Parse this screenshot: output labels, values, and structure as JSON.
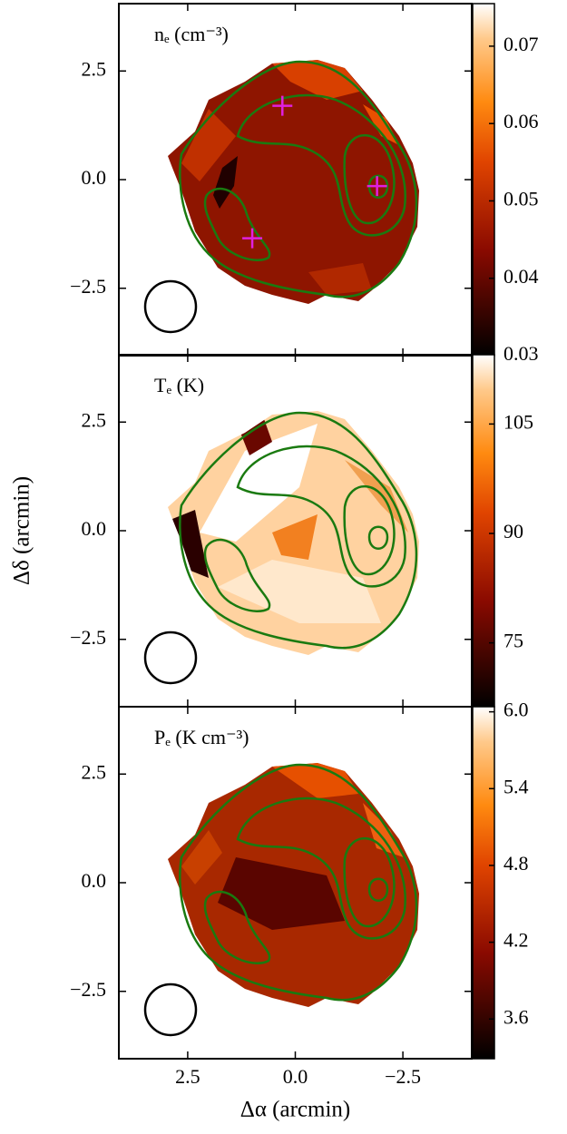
{
  "chart_data": [
    {
      "type": "map",
      "title": "nₑ (cm⁻³)",
      "xlim": [
        4.1,
        -4.1
      ],
      "ylim": [
        -4.05,
        4.05
      ],
      "xticks": [
        2.5,
        {
          "value": 0,
          "label": "0.0"
        },
        {
          "value": -2.5,
          "label": "−2.5"
        }
      ],
      "yticks": [
        2.5,
        {
          "value": 0,
          "label": "0.0"
        },
        {
          "value": -2.5,
          "label": "−2.5"
        }
      ],
      "clim": [
        0.03,
        0.0755
      ],
      "cticks": [
        0.03,
        0.04,
        0.05,
        0.06,
        0.07
      ],
      "markers": {
        "color": "#e020e0",
        "x": [
          0.3,
          1.0,
          -1.9
        ],
        "y": [
          1.7,
          -1.35,
          -0.15
        ]
      }
    },
    {
      "type": "map",
      "title": "Tₑ (K)",
      "ylabel": "Δδ (arcmin)",
      "xlim": [
        4.1,
        -4.1
      ],
      "ylim": [
        -4.05,
        4.05
      ],
      "xticks": [
        2.5,
        {
          "value": 0,
          "label": "0.0"
        },
        {
          "value": -2.5,
          "label": "−2.5"
        }
      ],
      "yticks": [
        2.5,
        {
          "value": 0,
          "label": "0.0"
        },
        {
          "value": -2.5,
          "label": "−2.5"
        }
      ],
      "clim": [
        66.25,
        114.5
      ],
      "cticks": [
        75,
        90,
        105
      ]
    },
    {
      "type": "map",
      "title": "Pₑ (K cm⁻³)",
      "xlabel": "Δα (arcmin)",
      "xlim": [
        4.1,
        -4.1
      ],
      "ylim": [
        -4.05,
        4.05
      ],
      "xticks": [
        2.5,
        {
          "value": 0,
          "label": "0.0"
        },
        {
          "value": -2.5,
          "label": "−2.5"
        }
      ],
      "yticks": [
        2.5,
        {
          "value": 0,
          "label": "0.0"
        },
        {
          "value": -2.5,
          "label": "−2.5"
        }
      ],
      "clim": [
        3.29,
        6.04
      ],
      "cticks": [
        3.6,
        4.2,
        4.8,
        5.4,
        {
          "value": 6,
          "label": "6.0"
        }
      ]
    }
  ]
}
